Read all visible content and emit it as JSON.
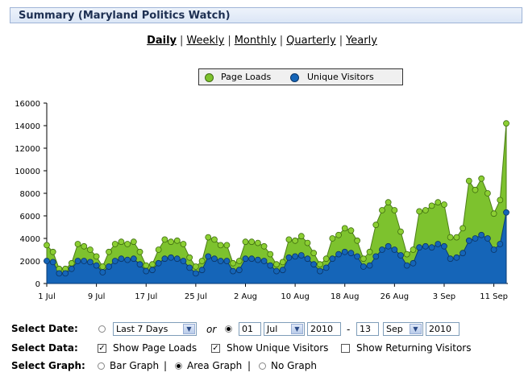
{
  "header": {
    "title": "Summary (Maryland Politics Watch)"
  },
  "periods": {
    "daily": "Daily",
    "weekly": "Weekly",
    "monthly": "Monthly",
    "quarterly": "Quarterly",
    "yearly": "Yearly",
    "sep": "|"
  },
  "legend": {
    "page_loads": "Page Loads",
    "unique_visitors": "Unique Visitors"
  },
  "colors": {
    "page_loads": "#7dc22e",
    "unique_visitors": "#1565b8"
  },
  "chart_data": {
    "type": "area",
    "x_labels": [
      "1 Jul",
      "9 Jul",
      "17 Jul",
      "25 Jul",
      "2 Aug",
      "10 Aug",
      "18 Aug",
      "26 Aug",
      "3 Sep",
      "11 Sep"
    ],
    "x_label_every": 8,
    "y_ticks": [
      0,
      2000,
      4000,
      6000,
      8000,
      10000,
      12000,
      14000,
      16000
    ],
    "ylim": [
      0,
      16000
    ],
    "series": [
      {
        "name": "Page Loads",
        "values": [
          3400,
          2800,
          1300,
          1300,
          1800,
          3500,
          3300,
          3000,
          2400,
          1500,
          2800,
          3500,
          3700,
          3500,
          3700,
          2800,
          1600,
          1700,
          3000,
          3900,
          3700,
          3800,
          3500,
          2300,
          1500,
          2000,
          4100,
          3900,
          3400,
          3400,
          1800,
          2000,
          3700,
          3700,
          3600,
          3300,
          2600,
          1700,
          1900,
          3900,
          3800,
          4200,
          3600,
          2700,
          1700,
          2200,
          4000,
          4300,
          4900,
          4700,
          3800,
          2200,
          2800,
          5200,
          6500,
          7200,
          6500,
          4600,
          2600,
          3000,
          6400,
          6500,
          6900,
          7200,
          7000,
          4100,
          4100,
          4900,
          9100,
          8300,
          9300,
          8000,
          6200,
          7400,
          14200
        ]
      },
      {
        "name": "Unique Visitors",
        "values": [
          2000,
          1900,
          900,
          900,
          1300,
          2000,
          2000,
          1900,
          1600,
          1000,
          1500,
          2000,
          2200,
          2100,
          2200,
          1700,
          1100,
          1200,
          1800,
          2200,
          2300,
          2200,
          2000,
          1400,
          900,
          1200,
          2400,
          2200,
          2000,
          2000,
          1100,
          1200,
          2200,
          2200,
          2100,
          2000,
          1600,
          1100,
          1200,
          2300,
          2400,
          2500,
          2200,
          1700,
          1100,
          1400,
          2200,
          2600,
          2800,
          2700,
          2400,
          1500,
          1600,
          2400,
          3000,
          3300,
          3000,
          2500,
          1600,
          1800,
          3200,
          3300,
          3200,
          3500,
          3300,
          2200,
          2300,
          2700,
          3800,
          4000,
          4300,
          4000,
          3000,
          3500,
          6300
        ]
      }
    ]
  },
  "controls": {
    "select_date_label": "Select Date:",
    "preset": "Last 7 Days",
    "or": "or",
    "from_day": "01",
    "from_month": "Jul",
    "from_year": "2010",
    "dash": "-",
    "to_day": "13",
    "to_month": "Sep",
    "to_year": "2010",
    "select_data_label": "Select Data:",
    "show_page_loads": "Show Page Loads",
    "show_unique": "Show Unique Visitors",
    "show_returning": "Show Returning Visitors",
    "select_graph_label": "Select Graph:",
    "bar_graph": "Bar Graph",
    "area_graph": "Area Graph",
    "no_graph": "No Graph",
    "pipe": "|"
  }
}
